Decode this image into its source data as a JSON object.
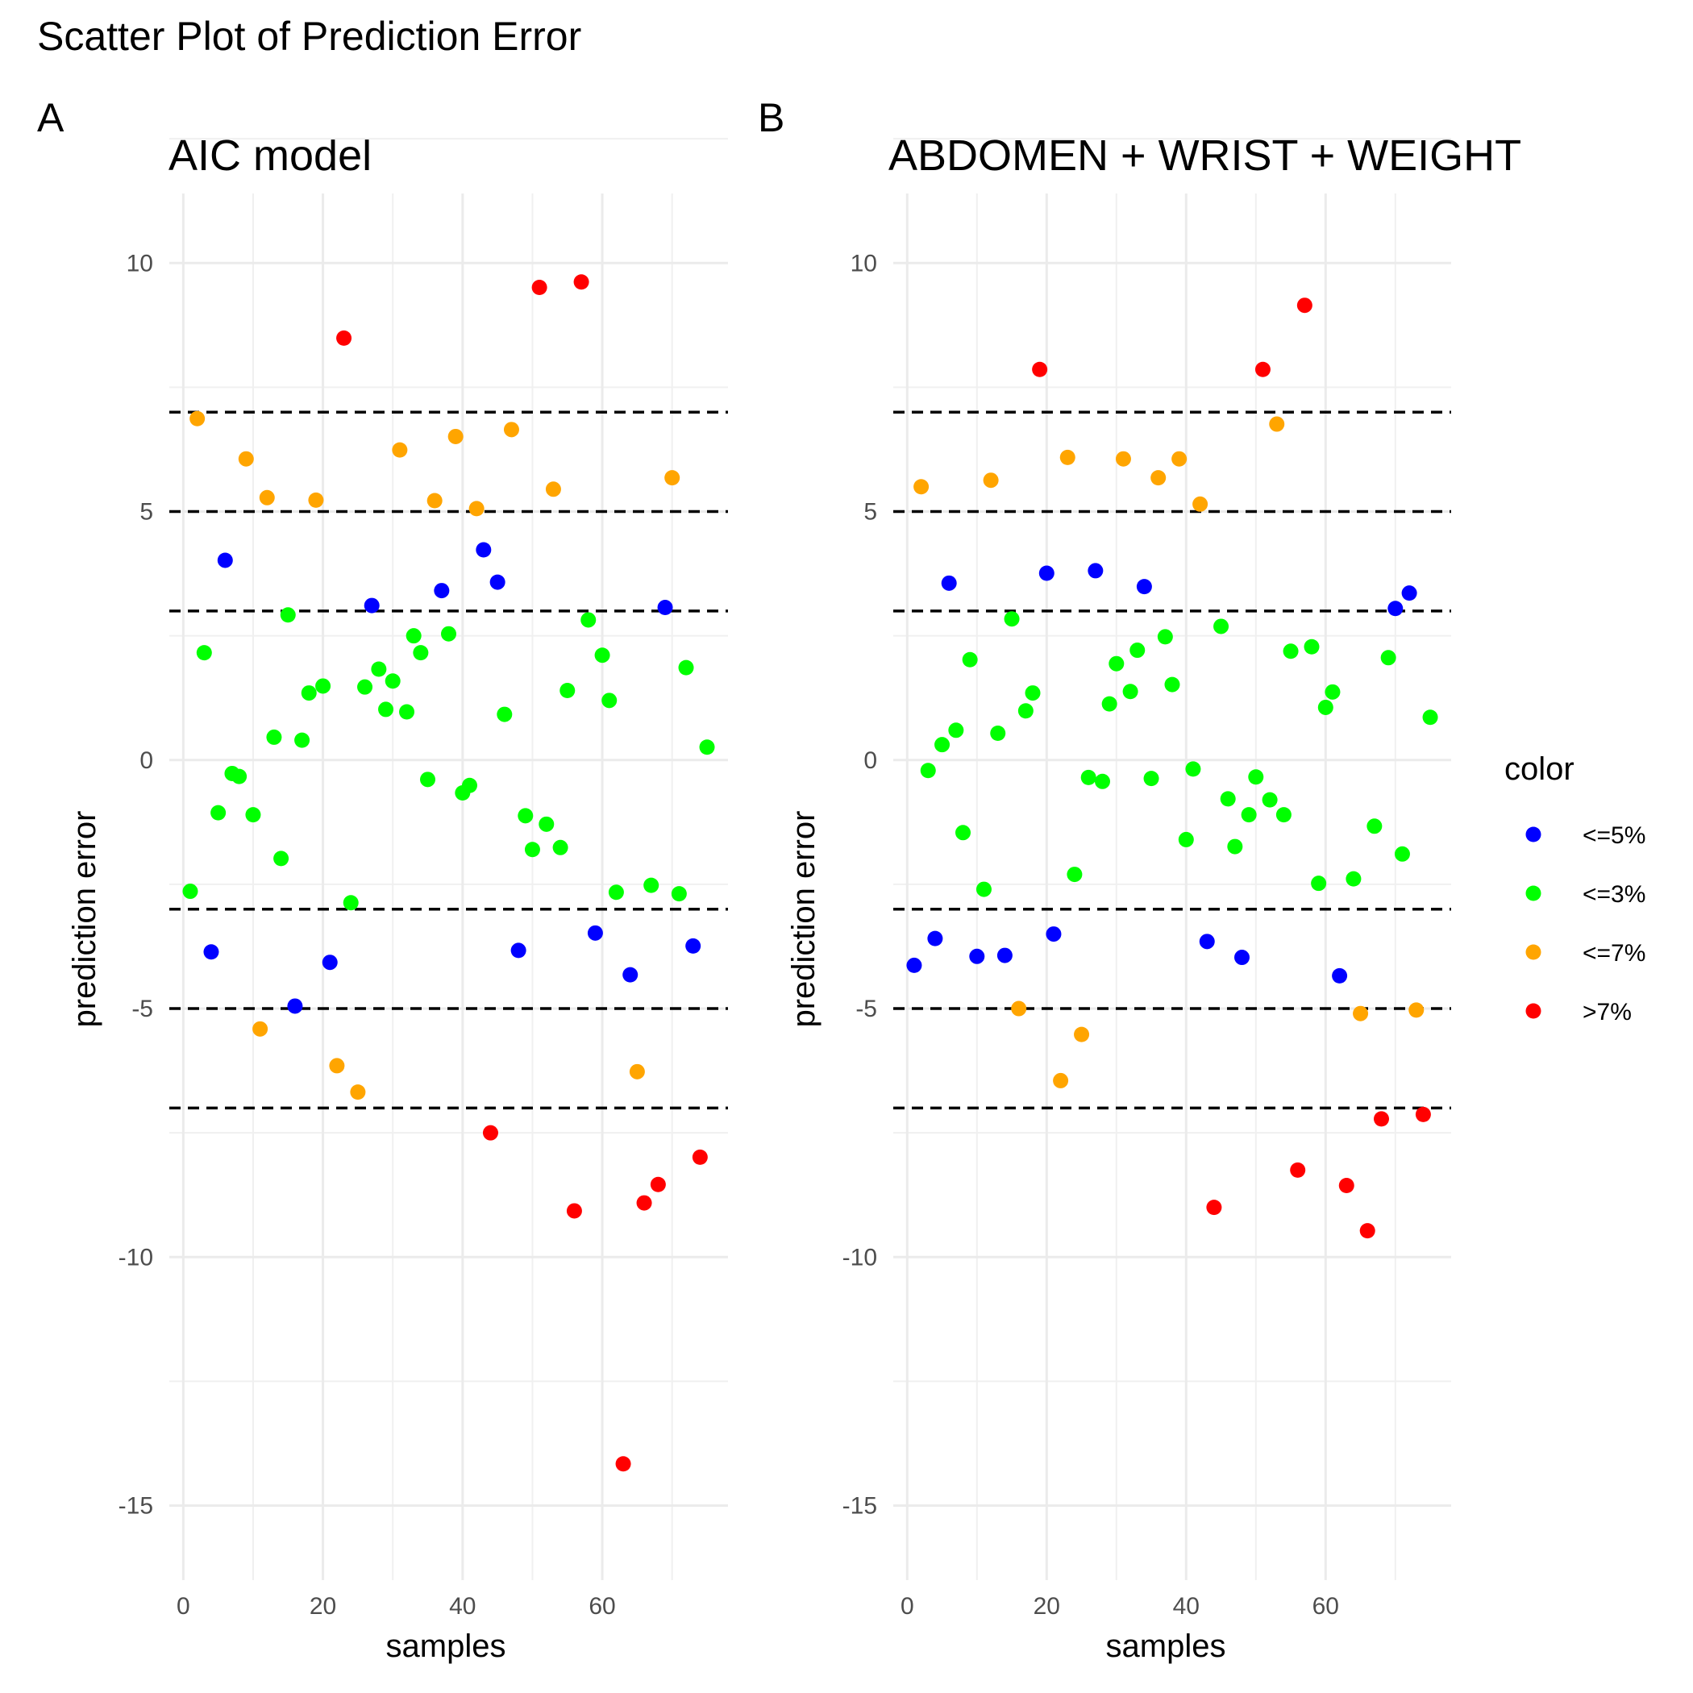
{
  "title": "Scatter Plot of Prediction Error",
  "legend": {
    "title": "color",
    "placement": "right",
    "items": [
      {
        "label": "<=5%",
        "color": "#0000FF"
      },
      {
        "label": "<=3%",
        "color": "#00FF00"
      },
      {
        "label": "<=7%",
        "color": "#FFA500"
      },
      {
        "label": ">7%",
        "color": "#FF0000"
      }
    ]
  },
  "chart_data": [
    {
      "type": "scatter",
      "tag": "A",
      "title": "AIC model",
      "xlabel": "samples",
      "ylabel": "prediction error",
      "xlim": [
        -2,
        78
      ],
      "ylim": [
        -16.5,
        11.4
      ],
      "xticks": [
        0,
        20,
        40,
        60
      ],
      "yticks": [
        10,
        5,
        0,
        -5,
        -10,
        -15
      ],
      "grid": true,
      "reference_lines": [
        7,
        5,
        3,
        -3,
        -5,
        -7
      ],
      "series": [
        {
          "name": "<=5%",
          "color": "#0000FF",
          "points": [
            [
              4,
              -3.86
            ],
            [
              6,
              4.02
            ],
            [
              16,
              -4.95
            ],
            [
              21,
              -4.07
            ],
            [
              27,
              3.11
            ],
            [
              37,
              3.41
            ],
            [
              43,
              4.23
            ],
            [
              45,
              3.58
            ],
            [
              48,
              -3.83
            ],
            [
              59,
              -3.48
            ],
            [
              64,
              -4.32
            ],
            [
              69,
              3.07
            ],
            [
              73,
              -3.74
            ]
          ]
        },
        {
          "name": "<=3%",
          "color": "#00FF00",
          "points": [
            [
              1,
              -2.64
            ],
            [
              3,
              2.16
            ],
            [
              5,
              -1.06
            ],
            [
              7,
              -0.27
            ],
            [
              8,
              -0.33
            ],
            [
              10,
              -1.1
            ],
            [
              13,
              0.46
            ],
            [
              14,
              -1.98
            ],
            [
              15,
              2.92
            ],
            [
              17,
              0.4
            ],
            [
              18,
              1.35
            ],
            [
              20,
              1.49
            ],
            [
              24,
              -2.87
            ],
            [
              26,
              1.47
            ],
            [
              28,
              1.83
            ],
            [
              29,
              1.02
            ],
            [
              30,
              1.59
            ],
            [
              32,
              0.97
            ],
            [
              33,
              2.5
            ],
            [
              34,
              2.16
            ],
            [
              35,
              -0.39
            ],
            [
              38,
              2.54
            ],
            [
              40,
              -0.66
            ],
            [
              41,
              -0.51
            ],
            [
              46,
              0.92
            ],
            [
              49,
              -1.12
            ],
            [
              50,
              -1.8
            ],
            [
              52,
              -1.29
            ],
            [
              54,
              -1.76
            ],
            [
              55,
              1.4
            ],
            [
              58,
              2.82
            ],
            [
              60,
              2.11
            ],
            [
              61,
              1.2
            ],
            [
              62,
              -2.66
            ],
            [
              67,
              -2.52
            ],
            [
              71,
              -2.69
            ],
            [
              72,
              1.86
            ],
            [
              75,
              0.26
            ]
          ]
        },
        {
          "name": "<=7%",
          "color": "#FFA500",
          "points": [
            [
              2,
              6.87
            ],
            [
              9,
              6.06
            ],
            [
              11,
              -5.41
            ],
            [
              12,
              5.28
            ],
            [
              19,
              5.23
            ],
            [
              22,
              -6.15
            ],
            [
              25,
              -6.68
            ],
            [
              31,
              6.24
            ],
            [
              36,
              5.22
            ],
            [
              39,
              6.51
            ],
            [
              42,
              5.06
            ],
            [
              47,
              6.65
            ],
            [
              53,
              5.45
            ],
            [
              65,
              -6.27
            ],
            [
              70,
              5.68
            ]
          ]
        },
        {
          "name": ">7%",
          "color": "#FF0000",
          "points": [
            [
              23,
              8.49
            ],
            [
              44,
              -7.5
            ],
            [
              51,
              9.51
            ],
            [
              56,
              -9.07
            ],
            [
              57,
              9.62
            ],
            [
              63,
              -14.16
            ],
            [
              66,
              -8.91
            ],
            [
              68,
              -8.54
            ],
            [
              74,
              -7.99
            ]
          ]
        }
      ]
    },
    {
      "type": "scatter",
      "tag": "B",
      "title": "ABDOMEN + WRIST + WEIGHT",
      "xlabel": "samples",
      "ylabel": "prediction error",
      "xlim": [
        -2,
        78
      ],
      "ylim": [
        -16.5,
        11.4
      ],
      "xticks": [
        0,
        20,
        40,
        60
      ],
      "yticks": [
        10,
        5,
        0,
        -5,
        -10,
        -15
      ],
      "grid": true,
      "reference_lines": [
        7,
        5,
        3,
        -3,
        -5,
        -7
      ],
      "series": [
        {
          "name": "<=5%",
          "color": "#0000FF",
          "points": [
            [
              1,
              -4.13
            ],
            [
              4,
              -3.59
            ],
            [
              6,
              3.56
            ],
            [
              10,
              -3.95
            ],
            [
              14,
              -3.93
            ],
            [
              20,
              3.76
            ],
            [
              21,
              -3.5
            ],
            [
              27,
              3.81
            ],
            [
              34,
              3.49
            ],
            [
              43,
              -3.65
            ],
            [
              48,
              -3.97
            ],
            [
              62,
              -4.34
            ],
            [
              70,
              3.05
            ],
            [
              72,
              3.36
            ]
          ]
        },
        {
          "name": "<=3%",
          "color": "#00FF00",
          "points": [
            [
              3,
              -0.21
            ],
            [
              5,
              0.31
            ],
            [
              7,
              0.6
            ],
            [
              8,
              -1.46
            ],
            [
              9,
              2.02
            ],
            [
              11,
              -2.6
            ],
            [
              13,
              0.54
            ],
            [
              15,
              2.84
            ],
            [
              17,
              0.99
            ],
            [
              18,
              1.35
            ],
            [
              24,
              -2.3
            ],
            [
              26,
              -0.35
            ],
            [
              28,
              -0.43
            ],
            [
              29,
              1.13
            ],
            [
              30,
              1.94
            ],
            [
              32,
              1.38
            ],
            [
              33,
              2.21
            ],
            [
              35,
              -0.37
            ],
            [
              37,
              2.48
            ],
            [
              38,
              1.52
            ],
            [
              40,
              -1.6
            ],
            [
              41,
              -0.18
            ],
            [
              45,
              2.69
            ],
            [
              46,
              -0.78
            ],
            [
              47,
              -1.74
            ],
            [
              49,
              -1.1
            ],
            [
              50,
              -0.34
            ],
            [
              52,
              -0.8
            ],
            [
              54,
              -1.1
            ],
            [
              55,
              2.19
            ],
            [
              58,
              2.28
            ],
            [
              59,
              -2.48
            ],
            [
              60,
              1.06
            ],
            [
              61,
              1.37
            ],
            [
              64,
              -2.39
            ],
            [
              67,
              -1.33
            ],
            [
              69,
              2.06
            ],
            [
              71,
              -1.89
            ],
            [
              75,
              0.86
            ]
          ]
        },
        {
          "name": "<=7%",
          "color": "#FFA500",
          "points": [
            [
              2,
              5.5
            ],
            [
              12,
              5.63
            ],
            [
              16,
              -5.0
            ],
            [
              22,
              -6.45
            ],
            [
              23,
              6.09
            ],
            [
              25,
              -5.52
            ],
            [
              31,
              6.06
            ],
            [
              36,
              5.68
            ],
            [
              39,
              6.06
            ],
            [
              42,
              5.15
            ],
            [
              53,
              6.76
            ],
            [
              65,
              -5.1
            ],
            [
              73,
              -5.03
            ]
          ]
        },
        {
          "name": ">7%",
          "color": "#FF0000",
          "points": [
            [
              19,
              7.86
            ],
            [
              44,
              -9.0
            ],
            [
              51,
              7.86
            ],
            [
              56,
              -8.25
            ],
            [
              57,
              9.15
            ],
            [
              63,
              -8.56
            ],
            [
              66,
              -9.47
            ],
            [
              68,
              -7.22
            ],
            [
              74,
              -7.13
            ]
          ]
        }
      ]
    }
  ]
}
